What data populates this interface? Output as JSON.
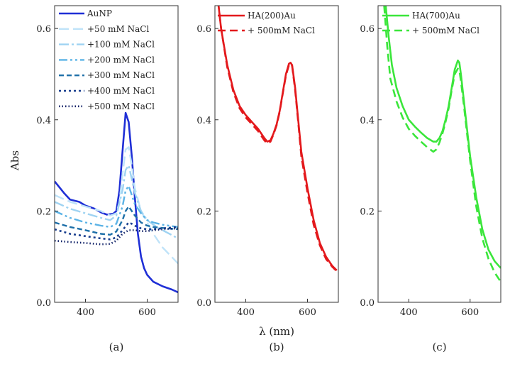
{
  "figure": {
    "y_axis_title": "Abs",
    "x_axis_title": "λ (nm)"
  },
  "chart_data": [
    {
      "type": "line",
      "panel": "(a)",
      "xlim": [
        300,
        700
      ],
      "ylim": [
        0,
        0.65
      ],
      "xticks": [
        400,
        600
      ],
      "yticks": [
        0.0,
        0.2,
        0.4,
        0.6
      ],
      "ylabel": "Abs",
      "xlabel": "",
      "series": [
        {
          "name": "AuNP",
          "color": "#1f2fd6",
          "dash": "solid",
          "width": 2.6,
          "x": [
            300,
            330,
            350,
            380,
            400,
            430,
            450,
            470,
            490,
            500,
            510,
            520,
            530,
            540,
            550,
            560,
            570,
            580,
            590,
            600,
            620,
            650,
            680,
            700
          ],
          "y": [
            0.265,
            0.24,
            0.225,
            0.22,
            0.212,
            0.205,
            0.197,
            0.192,
            0.194,
            0.2,
            0.245,
            0.33,
            0.415,
            0.395,
            0.32,
            0.23,
            0.15,
            0.1,
            0.075,
            0.06,
            0.045,
            0.035,
            0.028,
            0.022
          ]
        },
        {
          "name": "+50 mM NaCl",
          "color": "#bfe3f9",
          "dash": "14,6",
          "width": 2.4,
          "x": [
            300,
            350,
            400,
            450,
            480,
            500,
            510,
            520,
            530,
            540,
            550,
            560,
            580,
            600,
            620,
            650,
            700
          ],
          "y": [
            0.235,
            0.22,
            0.21,
            0.2,
            0.19,
            0.195,
            0.22,
            0.28,
            0.335,
            0.34,
            0.3,
            0.25,
            0.2,
            0.175,
            0.15,
            0.12,
            0.085
          ]
        },
        {
          "name": "+100 mM NaCl",
          "color": "#9fd3f2",
          "dash": "14,4,3,4",
          "width": 2.4,
          "x": [
            300,
            350,
            400,
            450,
            480,
            500,
            520,
            530,
            540,
            550,
            560,
            580,
            600,
            620,
            650,
            700
          ],
          "y": [
            0.22,
            0.205,
            0.195,
            0.185,
            0.18,
            0.19,
            0.245,
            0.29,
            0.3,
            0.27,
            0.24,
            0.2,
            0.18,
            0.17,
            0.158,
            0.14
          ]
        },
        {
          "name": "+200 mM NaCl",
          "color": "#5bb3e6",
          "dash": "12,4,3,4,3,4",
          "width": 2.4,
          "x": [
            300,
            350,
            400,
            450,
            480,
            500,
            520,
            530,
            540,
            550,
            560,
            580,
            600,
            620,
            650,
            700
          ],
          "y": [
            0.2,
            0.185,
            0.175,
            0.168,
            0.165,
            0.172,
            0.21,
            0.245,
            0.255,
            0.235,
            0.215,
            0.195,
            0.18,
            0.175,
            0.17,
            0.165
          ]
        },
        {
          "name": "+300 mM NaCl",
          "color": "#1d6fa8",
          "dash": "7,4",
          "width": 2.4,
          "x": [
            300,
            350,
            400,
            450,
            480,
            500,
            520,
            530,
            540,
            550,
            560,
            580,
            600,
            620,
            650,
            700
          ],
          "y": [
            0.175,
            0.165,
            0.158,
            0.15,
            0.148,
            0.155,
            0.18,
            0.2,
            0.21,
            0.2,
            0.19,
            0.175,
            0.168,
            0.165,
            0.163,
            0.16
          ]
        },
        {
          "name": "+400 mM NaCl",
          "color": "#1a3f8f",
          "dash": "3,4",
          "width": 2.6,
          "x": [
            300,
            350,
            400,
            450,
            480,
            500,
            520,
            540,
            550,
            560,
            580,
            600,
            620,
            650,
            700
          ],
          "y": [
            0.16,
            0.15,
            0.145,
            0.14,
            0.138,
            0.142,
            0.158,
            0.175,
            0.172,
            0.168,
            0.162,
            0.16,
            0.16,
            0.162,
            0.165
          ]
        },
        {
          "name": "+500 mM NaCl",
          "color": "#0d1f66",
          "dash": "1.5,3",
          "width": 2.6,
          "x": [
            300,
            350,
            400,
            450,
            480,
            500,
            520,
            540,
            560,
            580,
            600,
            620,
            650,
            700
          ],
          "y": [
            0.135,
            0.132,
            0.13,
            0.127,
            0.128,
            0.135,
            0.15,
            0.158,
            0.158,
            0.156,
            0.156,
            0.158,
            0.16,
            0.162
          ]
        }
      ]
    },
    {
      "type": "line",
      "panel": "(b)",
      "xlim": [
        300,
        700
      ],
      "ylim": [
        0,
        0.65
      ],
      "xticks": [
        400,
        600
      ],
      "yticks": [
        0.0,
        0.2,
        0.4,
        0.6
      ],
      "ylabel": "",
      "xlabel": "λ (nm)",
      "series": [
        {
          "name": "HA(200)Au",
          "color": "#e3191c",
          "dash": "solid",
          "width": 2.6,
          "x": [
            310,
            320,
            340,
            360,
            380,
            400,
            420,
            440,
            460,
            470,
            480,
            490,
            500,
            510,
            520,
            530,
            540,
            545,
            550,
            560,
            570,
            580,
            600,
            620,
            640,
            660,
            680,
            695
          ],
          "y": [
            0.66,
            0.6,
            0.52,
            0.465,
            0.43,
            0.41,
            0.395,
            0.38,
            0.36,
            0.352,
            0.355,
            0.37,
            0.39,
            0.42,
            0.46,
            0.5,
            0.523,
            0.525,
            0.52,
            0.47,
            0.4,
            0.33,
            0.25,
            0.18,
            0.13,
            0.1,
            0.08,
            0.07
          ]
        },
        {
          "name": "+ 500mM NaCl",
          "color": "#e3191c",
          "dash": "11,6",
          "width": 2.6,
          "x": [
            310,
            320,
            340,
            360,
            380,
            400,
            420,
            440,
            460,
            470,
            480,
            490,
            500,
            510,
            520,
            530,
            540,
            545,
            550,
            560,
            570,
            580,
            600,
            620,
            640,
            660,
            680,
            695
          ],
          "y": [
            0.66,
            0.6,
            0.515,
            0.46,
            0.425,
            0.405,
            0.39,
            0.375,
            0.355,
            0.348,
            0.352,
            0.368,
            0.388,
            0.418,
            0.458,
            0.497,
            0.52,
            0.523,
            0.518,
            0.465,
            0.395,
            0.32,
            0.24,
            0.17,
            0.125,
            0.095,
            0.078,
            0.068
          ]
        }
      ]
    },
    {
      "type": "line",
      "panel": "(c)",
      "xlim": [
        300,
        700
      ],
      "ylim": [
        0,
        0.65
      ],
      "xticks": [
        400,
        600
      ],
      "yticks": [
        0.0,
        0.2,
        0.4,
        0.6
      ],
      "ylabel": "",
      "xlabel": "",
      "series": [
        {
          "name": "HA(700)Au",
          "color": "#3be63b",
          "dash": "solid",
          "width": 2.6,
          "x": [
            325,
            335,
            345,
            360,
            380,
            400,
            420,
            440,
            460,
            480,
            490,
            500,
            510,
            520,
            530,
            540,
            550,
            560,
            565,
            570,
            580,
            590,
            600,
            620,
            640,
            660,
            680,
            700
          ],
          "y": [
            0.65,
            0.58,
            0.52,
            0.47,
            0.43,
            0.4,
            0.385,
            0.372,
            0.36,
            0.352,
            0.352,
            0.36,
            0.375,
            0.4,
            0.43,
            0.47,
            0.51,
            0.53,
            0.525,
            0.5,
            0.44,
            0.38,
            0.32,
            0.23,
            0.16,
            0.115,
            0.09,
            0.075
          ]
        },
        {
          "name": "+ 500mM NaCl",
          "color": "#3be63b",
          "dash": "11,6",
          "width": 2.6,
          "x": [
            320,
            330,
            340,
            360,
            380,
            400,
            420,
            440,
            460,
            480,
            490,
            500,
            510,
            520,
            530,
            540,
            550,
            560,
            565,
            570,
            580,
            590,
            600,
            620,
            640,
            660,
            680,
            700
          ],
          "y": [
            0.65,
            0.56,
            0.49,
            0.44,
            0.405,
            0.38,
            0.365,
            0.352,
            0.34,
            0.33,
            0.335,
            0.35,
            0.37,
            0.395,
            0.425,
            0.465,
            0.5,
            0.512,
            0.508,
            0.485,
            0.43,
            0.37,
            0.31,
            0.21,
            0.14,
            0.095,
            0.065,
            0.045
          ]
        }
      ]
    }
  ]
}
